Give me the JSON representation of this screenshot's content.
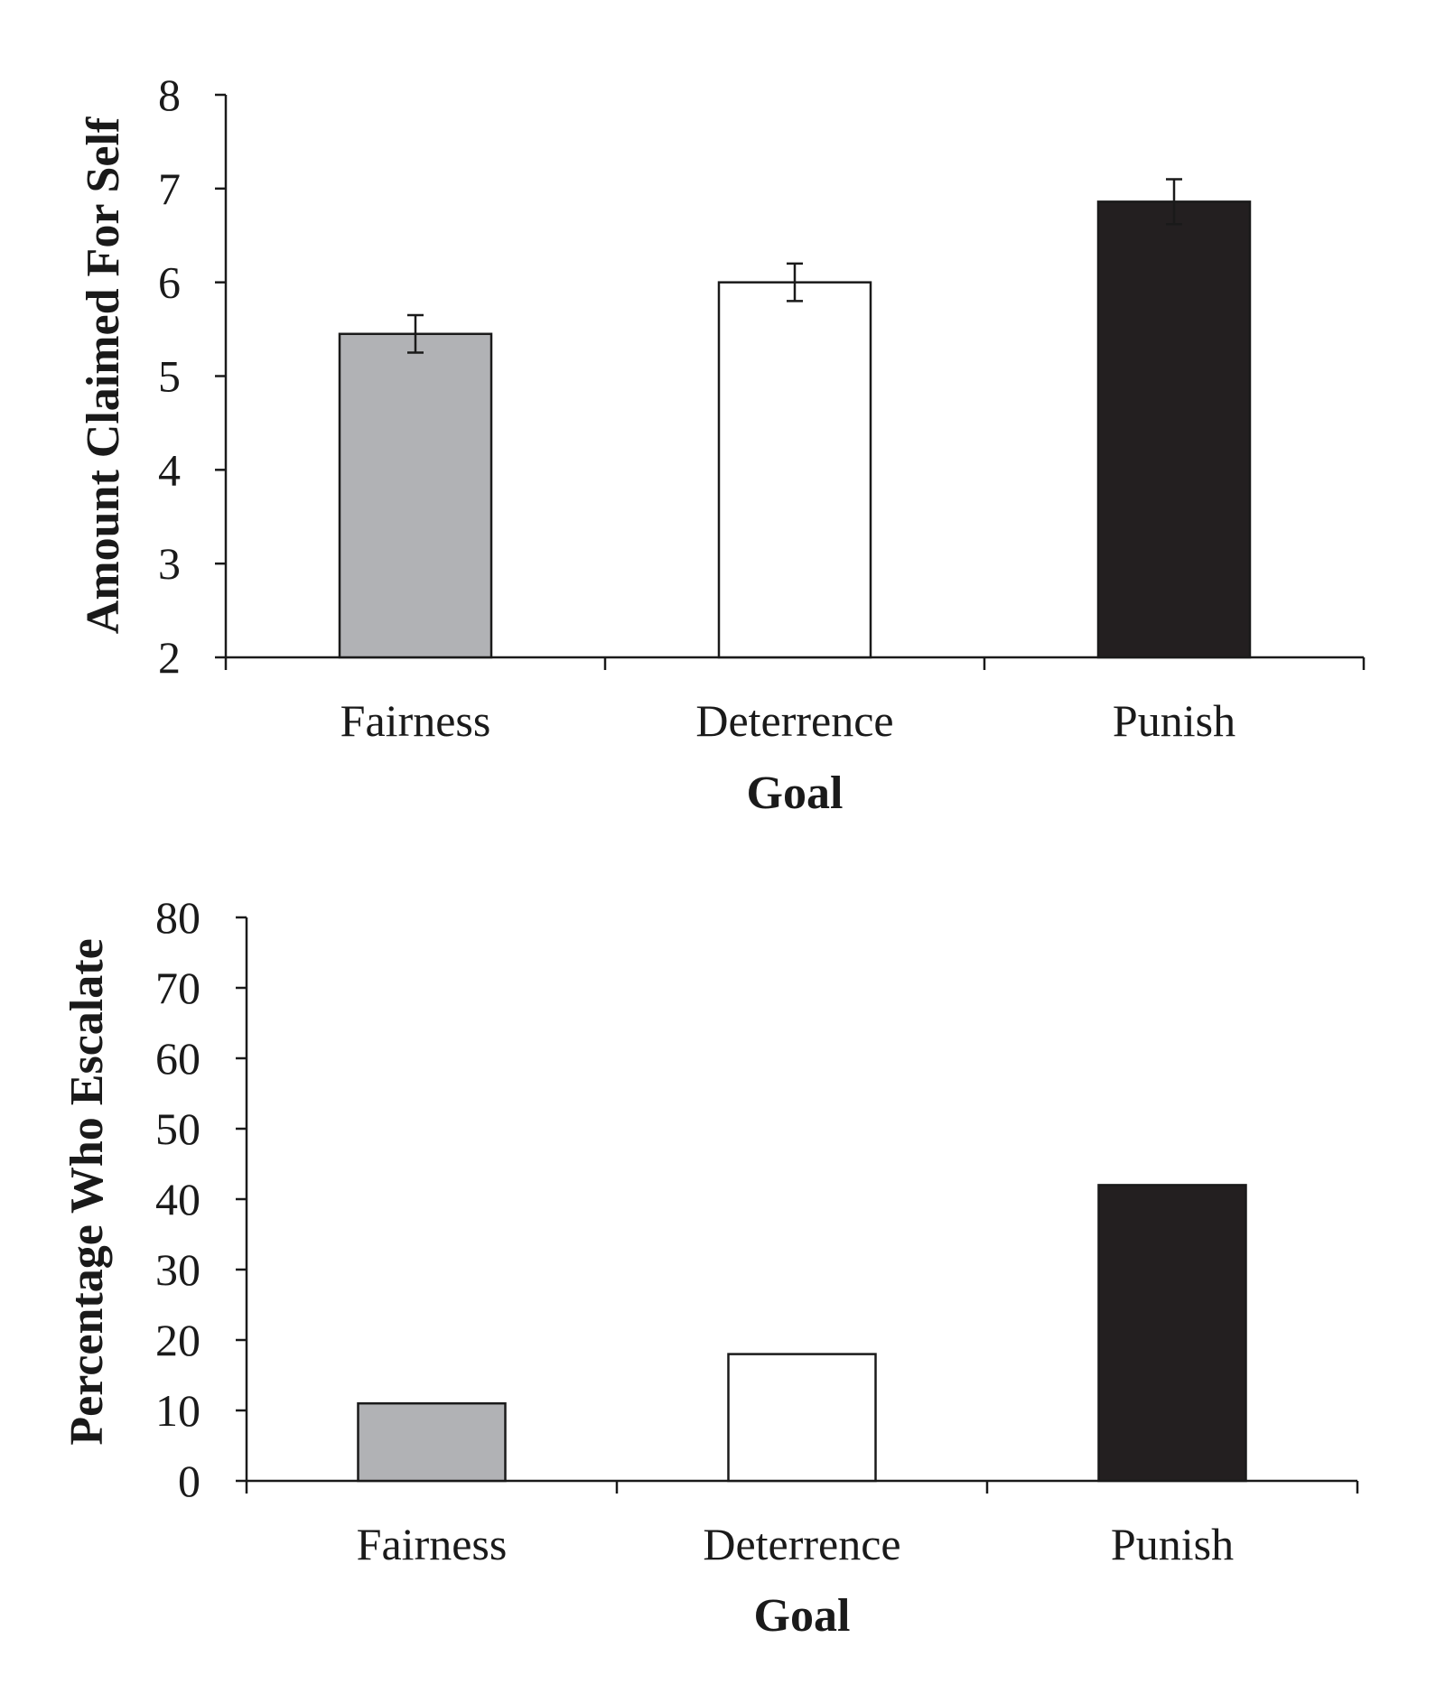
{
  "chart_data": [
    {
      "type": "bar",
      "title": "",
      "xlabel": "Goal",
      "ylabel": "Amount Claimed For Self",
      "categories": [
        "Fairness",
        "Deterrence",
        "Punish"
      ],
      "values": [
        5.45,
        6.0,
        6.86
      ],
      "error": [
        0.2,
        0.2,
        0.24
      ],
      "ylim": [
        2,
        8
      ],
      "yticks": [
        2,
        3,
        4,
        5,
        6,
        7,
        8
      ],
      "colors": [
        "#b1b2b5",
        "#ffffff",
        "#231f20"
      ],
      "grid": false,
      "legend": "none"
    },
    {
      "type": "bar",
      "title": "",
      "xlabel": "Goal",
      "ylabel": "Percentage Who Escalate",
      "categories": [
        "Fairness",
        "Deterrence",
        "Punish"
      ],
      "values": [
        11,
        18,
        42
      ],
      "ylim": [
        0,
        80
      ],
      "yticks": [
        0,
        10,
        20,
        30,
        40,
        50,
        60,
        70,
        80
      ],
      "colors": [
        "#b1b2b5",
        "#ffffff",
        "#231f20"
      ],
      "grid": false,
      "legend": "none"
    }
  ]
}
